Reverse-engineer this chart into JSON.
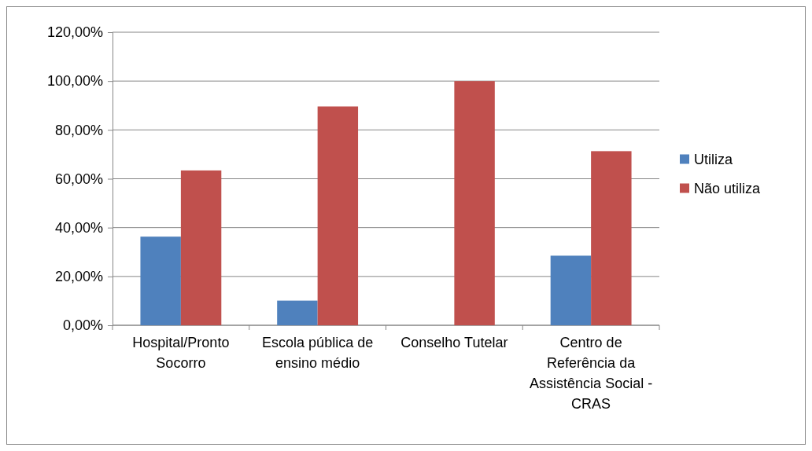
{
  "chart_data": {
    "type": "bar",
    "categories": [
      "Hospital/Pronto Socorro",
      "Escola pública de ensino médio",
      "Conselho Tutelar",
      "Centro de Referência da Assistência Social - CRAS"
    ],
    "series": [
      {
        "name": "Utiliza",
        "color": "#4f81bd",
        "values": [
          36.3,
          10.1,
          0,
          28.5
        ]
      },
      {
        "name": "Não utiliza",
        "color": "#c0504d",
        "values": [
          63.4,
          89.6,
          100,
          71.3
        ]
      }
    ],
    "ylim": [
      0,
      120
    ],
    "yticks": [
      {
        "value": 0,
        "label": "0,00%"
      },
      {
        "value": 20,
        "label": "20,00%"
      },
      {
        "value": 40,
        "label": "40,00%"
      },
      {
        "value": 60,
        "label": "60,00%"
      },
      {
        "value": 80,
        "label": "80,00%"
      },
      {
        "value": 100,
        "label": "100,00%"
      },
      {
        "value": 120,
        "label": "120,00%"
      }
    ],
    "grid": "y",
    "legend": "right"
  }
}
